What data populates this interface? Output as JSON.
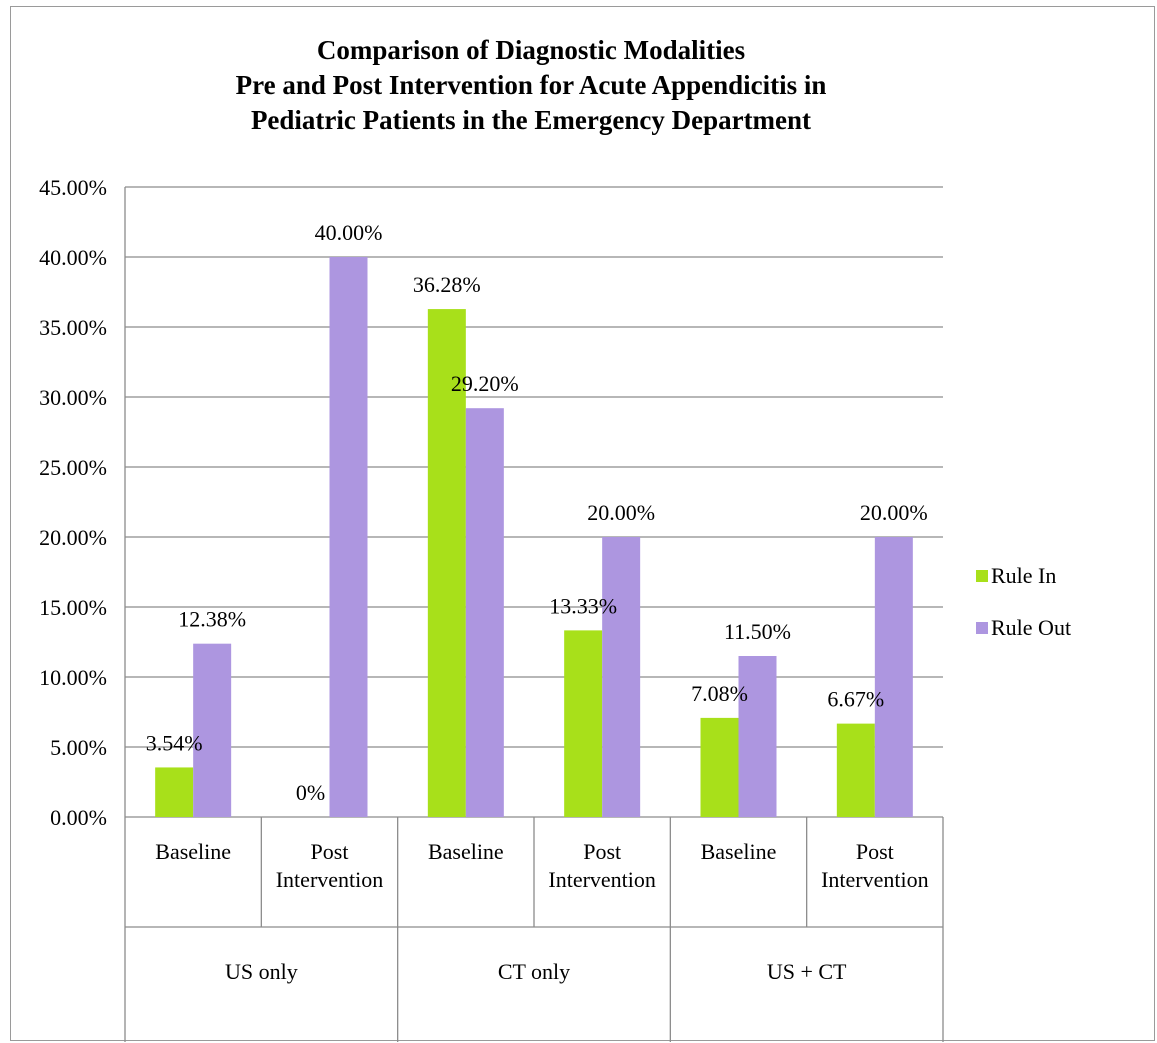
{
  "chart_data": {
    "type": "bar",
    "title_lines": [
      "Comparison of Diagnostic Modalities",
      "Pre and Post Intervention for Acute Appendicitis in",
      "Pediatric Patients in the Emergency Department"
    ],
    "groups": [
      {
        "label": "US only",
        "categories": [
          [
            "Baseline"
          ],
          [
            "Post",
            "Intervention"
          ]
        ]
      },
      {
        "label": "CT only",
        "categories": [
          [
            "Baseline"
          ],
          [
            "Post",
            "Intervention"
          ]
        ]
      },
      {
        "label": "US + CT",
        "categories": [
          [
            "Baseline"
          ],
          [
            "Post",
            "Intervention"
          ]
        ]
      }
    ],
    "series": [
      {
        "name": "Rule In",
        "color": "#a8e01a",
        "values": [
          3.54,
          0,
          36.28,
          13.33,
          7.08,
          6.67
        ],
        "labels": [
          "3.54%",
          "0%",
          "36.28%",
          "13.33%",
          "7.08%",
          "6.67%"
        ]
      },
      {
        "name": "Rule Out",
        "color": "#ad96e0",
        "values": [
          12.38,
          40.0,
          29.2,
          20.0,
          11.5,
          20.0
        ],
        "labels": [
          "12.38%",
          "40.00%",
          "29.20%",
          "20.00%",
          "11.50%",
          "20.00%"
        ]
      }
    ],
    "y_ticks": [
      "0.00%",
      "5.00%",
      "10.00%",
      "15.00%",
      "20.00%",
      "25.00%",
      "30.00%",
      "35.00%",
      "40.00%",
      "45.00%"
    ],
    "ylim": [
      0,
      45
    ],
    "grid": true,
    "legend_position": "right"
  }
}
